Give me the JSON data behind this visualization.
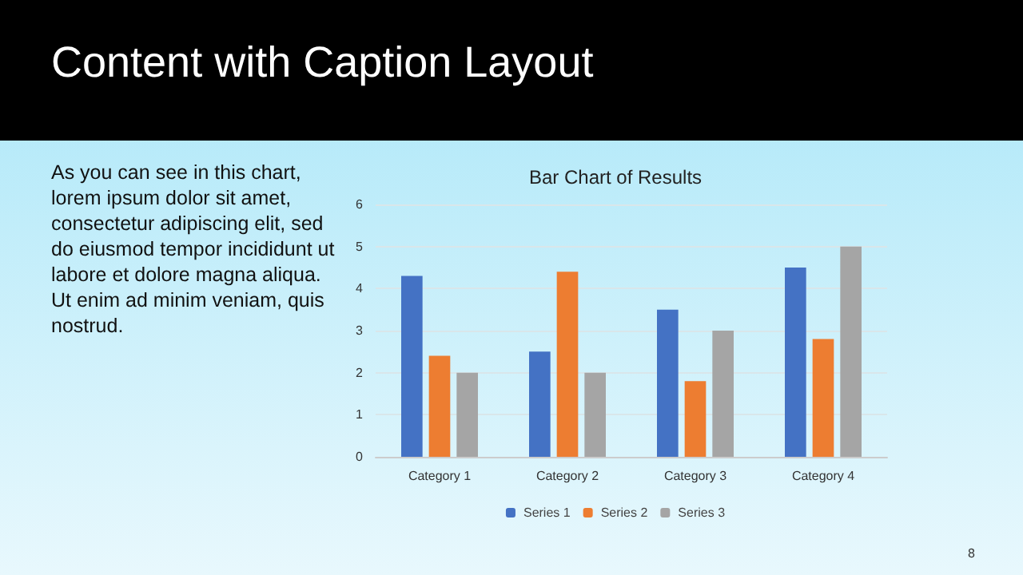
{
  "chart_data": {
    "type": "bar",
    "title": "Bar Chart of Results",
    "categories": [
      "Category 1",
      "Category 2",
      "Category 3",
      "Category 4"
    ],
    "series": [
      {
        "name": "Series 1",
        "color": "#4472c4",
        "values": [
          4.3,
          2.5,
          3.5,
          4.5
        ]
      },
      {
        "name": "Series 2",
        "color": "#ed7d31",
        "values": [
          2.4,
          4.4,
          1.8,
          2.8
        ]
      },
      {
        "name": "Series 3",
        "color": "#a5a5a5",
        "values": [
          2,
          2,
          3,
          5
        ]
      }
    ],
    "ylim": [
      0,
      6
    ],
    "yticks": [
      0,
      1,
      2,
      3,
      4,
      5,
      6
    ],
    "grid": "y",
    "legend": "bottom",
    "annotations": [
      "Content with Caption Layout",
      "As you can see in this chart, lorem ipsum dolor sit amet, consectetur adipiscing elit, sed do eiusmod tempor incididunt ut labore et dolore magna aliqua. Ut enim ad minim veniam, quis nostrud.",
      "8"
    ]
  }
}
